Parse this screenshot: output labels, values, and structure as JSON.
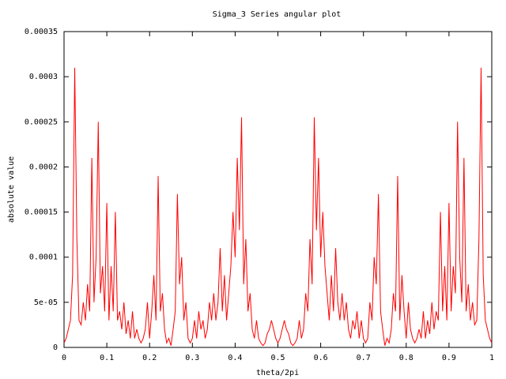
{
  "chart_data": {
    "type": "line",
    "title": "Sigma_3 Series angular plot",
    "x_label": "theta/2pi",
    "y_label": "absolute value",
    "xlim": [
      0,
      1
    ],
    "ylim": [
      0,
      0.00035
    ],
    "xticks": [
      0,
      0.1,
      0.2,
      0.3,
      0.4,
      0.5,
      0.6,
      0.7,
      0.8,
      0.9,
      1
    ],
    "yticks": [
      0,
      {
        "value": 5e-05,
        "label": "5e-05"
      },
      0.0001,
      0.00015,
      0.0002,
      0.00025,
      0.0003,
      0.00035
    ],
    "grid": false,
    "series": [
      {
        "color": "#ff0000",
        "x": [
          0,
          0.005,
          0.01,
          0.015,
          0.02,
          0.025,
          0.03,
          0.035,
          0.04,
          0.045,
          0.05,
          0.055,
          0.06,
          0.065,
          0.07,
          0.075,
          0.08,
          0.085,
          0.09,
          0.095,
          0.1,
          0.105,
          0.11,
          0.115,
          0.12,
          0.125,
          0.13,
          0.135,
          0.14,
          0.145,
          0.15,
          0.155,
          0.16,
          0.165,
          0.17,
          0.175,
          0.18,
          0.185,
          0.19,
          0.195,
          0.2,
          0.205,
          0.21,
          0.215,
          0.22,
          0.225,
          0.23,
          0.235,
          0.24,
          0.245,
          0.25,
          0.255,
          0.26,
          0.265,
          0.27,
          0.275,
          0.28,
          0.285,
          0.29,
          0.295,
          0.3,
          0.305,
          0.31,
          0.315,
          0.32,
          0.325,
          0.33,
          0.335,
          0.34,
          0.345,
          0.35,
          0.355,
          0.36,
          0.365,
          0.37,
          0.375,
          0.38,
          0.385,
          0.39,
          0.395,
          0.4,
          0.405,
          0.41,
          0.415,
          0.42,
          0.425,
          0.43,
          0.435,
          0.44,
          0.445,
          0.45,
          0.455,
          0.46,
          0.465,
          0.47,
          0.475,
          0.48,
          0.485,
          0.49,
          0.495,
          0.5,
          0.505,
          0.51,
          0.515,
          0.52,
          0.525,
          0.53,
          0.535,
          0.54,
          0.545,
          0.55,
          0.555,
          0.56,
          0.565,
          0.57,
          0.575,
          0.58,
          0.585,
          0.59,
          0.595,
          0.6,
          0.605,
          0.61,
          0.615,
          0.62,
          0.625,
          0.63,
          0.635,
          0.64,
          0.645,
          0.65,
          0.655,
          0.66,
          0.665,
          0.67,
          0.675,
          0.68,
          0.685,
          0.69,
          0.695,
          0.7,
          0.705,
          0.71,
          0.715,
          0.72,
          0.725,
          0.73,
          0.735,
          0.74,
          0.745,
          0.75,
          0.755,
          0.76,
          0.765,
          0.77,
          0.775,
          0.78,
          0.785,
          0.79,
          0.795,
          0.8,
          0.805,
          0.81,
          0.815,
          0.82,
          0.825,
          0.83,
          0.835,
          0.84,
          0.845,
          0.85,
          0.855,
          0.86,
          0.865,
          0.87,
          0.875,
          0.88,
          0.885,
          0.89,
          0.895,
          0.9,
          0.905,
          0.91,
          0.915,
          0.92,
          0.925,
          0.93,
          0.935,
          0.94,
          0.945,
          0.95,
          0.955,
          0.96,
          0.965,
          0.97,
          0.975,
          0.98,
          0.985,
          0.99,
          0.995,
          1
        ],
        "values": [
          5e-06,
          1e-05,
          2e-05,
          3e-05,
          8e-05,
          0.00031,
          0.00012,
          3e-05,
          2.5e-05,
          5e-05,
          3e-05,
          7e-05,
          4e-05,
          0.00021,
          5e-05,
          0.0001,
          0.00025,
          6e-05,
          9e-05,
          4e-05,
          0.00016,
          3e-05,
          9e-05,
          4e-05,
          0.00015,
          3e-05,
          4e-05,
          2e-05,
          5e-05,
          1.5e-05,
          3e-05,
          1e-05,
          4e-05,
          1e-05,
          2e-05,
          1e-05,
          5e-06,
          1e-05,
          2e-05,
          5e-05,
          1e-05,
          4e-05,
          8e-05,
          3e-05,
          0.00019,
          4e-05,
          6e-05,
          2e-05,
          5e-06,
          1e-05,
          2e-06,
          2e-05,
          4e-05,
          0.00017,
          7e-05,
          0.0001,
          3e-05,
          5e-05,
          1e-05,
          5e-06,
          1e-05,
          3e-05,
          1e-05,
          4e-05,
          2e-05,
          3e-05,
          1e-05,
          2e-05,
          5e-05,
          3e-05,
          6e-05,
          3e-05,
          5e-05,
          0.00011,
          4e-05,
          8e-05,
          3e-05,
          6e-05,
          9e-05,
          0.00015,
          0.0001,
          0.00021,
          0.00013,
          0.000255,
          7e-05,
          0.00012,
          4e-05,
          6e-05,
          2e-05,
          1e-05,
          3e-05,
          1e-05,
          5e-06,
          2e-06,
          5e-06,
          1.5e-05,
          2e-05,
          3e-05,
          2e-05,
          1e-05,
          5e-06,
          1e-05,
          2e-05,
          3e-05,
          2e-05,
          1.5e-05,
          5e-06,
          2e-06,
          5e-06,
          1e-05,
          3e-05,
          1e-05,
          2e-05,
          6e-05,
          4e-05,
          0.00012,
          7e-05,
          0.000255,
          0.00013,
          0.00021,
          0.0001,
          0.00015,
          9e-05,
          6e-05,
          3e-05,
          8e-05,
          4e-05,
          0.00011,
          5e-05,
          3e-05,
          6e-05,
          3e-05,
          5e-05,
          2e-05,
          1e-05,
          3e-05,
          2e-05,
          4e-05,
          1e-05,
          3e-05,
          1e-05,
          5e-06,
          1e-05,
          5e-05,
          3e-05,
          0.0001,
          7e-05,
          0.00017,
          4e-05,
          2e-05,
          2e-06,
          1e-05,
          5e-06,
          2e-05,
          6e-05,
          4e-05,
          0.00019,
          3e-05,
          8e-05,
          4e-05,
          1e-05,
          5e-05,
          2e-05,
          1e-05,
          5e-06,
          1e-05,
          2e-05,
          1e-05,
          4e-05,
          1e-05,
          3e-05,
          1.5e-05,
          5e-05,
          2e-05,
          4e-05,
          3e-05,
          0.00015,
          4e-05,
          9e-05,
          3e-05,
          0.00016,
          4e-05,
          9e-05,
          6e-05,
          0.00025,
          0.0001,
          5e-05,
          0.00021,
          4e-05,
          7e-05,
          3e-05,
          5e-05,
          2.5e-05,
          3e-05,
          0.00012,
          0.00031,
          8e-05,
          3e-05,
          2e-05,
          1e-05,
          5e-06
        ]
      }
    ]
  }
}
